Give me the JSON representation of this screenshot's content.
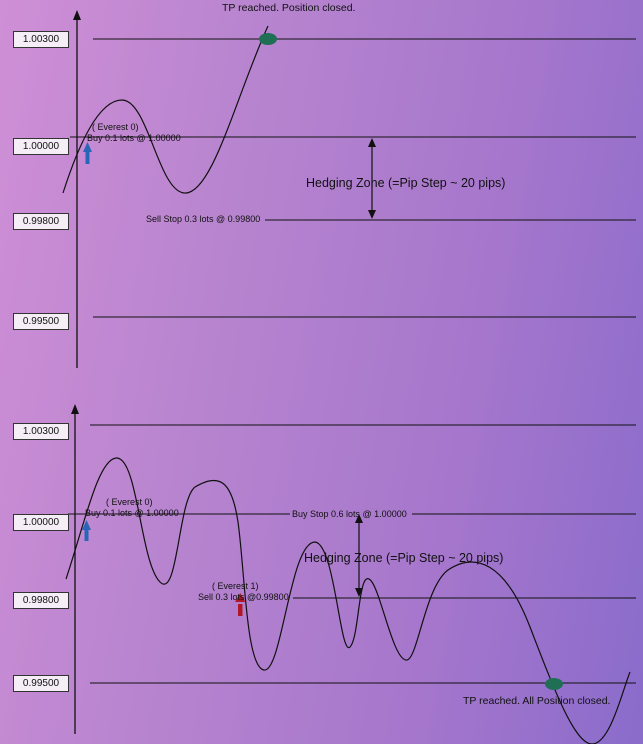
{
  "top": {
    "prices": [
      "1.00300",
      "1.00000",
      "0.99800",
      "0.99500"
    ],
    "tp_label": "TP reached. Position closed.",
    "everest_label": "(    Everest   0)",
    "buy_label": "Buy 0.1 lots @ 1.00000",
    "hedging_label": "Hedging Zone (=Pip Step ~ 20 pips)",
    "sellstop_label": "Sell Stop 0.3 lots @ 0.99800"
  },
  "bottom": {
    "prices": [
      "1.00300",
      "1.00000",
      "0.99800",
      "0.99500"
    ],
    "everest0_label": "(    Everest   0)",
    "buy_label": "Buy 0.1 lots @ 1.00000",
    "buystop_label": "Buy Stop 0.6 lots @ 1.00000",
    "hedging_label": "Hedging Zone (=Pip Step ~ 20 pips)",
    "everest1_label": "(    Everest  1)",
    "sell_label": "Sell 0.3 lots @0.99800",
    "tp_label": "TP reached. All Position closed."
  },
  "colors": {
    "buy_arrow": "#2a66b8",
    "sell_arrow": "#b0182a",
    "tp_marker": "#1f6f55",
    "line": "#111111"
  }
}
